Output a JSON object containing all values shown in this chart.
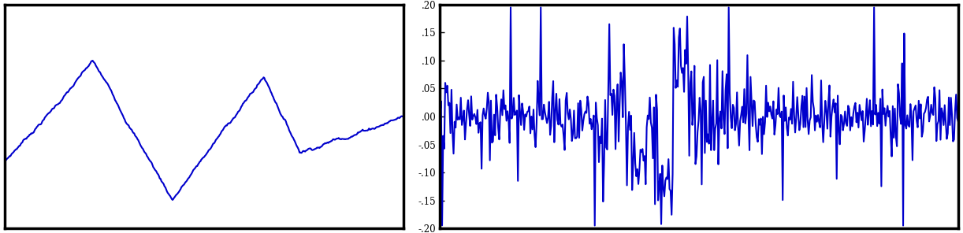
{
  "n": 500,
  "seed": 7,
  "line_color": "#0000CC",
  "line_width": 1.5,
  "background_color": "#ffffff",
  "right_ylim": [
    -0.2,
    0.2
  ],
  "right_yticks": [
    0.2,
    0.15,
    0.1,
    0.05,
    0.0,
    -0.05,
    -0.1,
    -0.15,
    -0.2
  ],
  "right_yticklabels": [
    ".20",
    ".15",
    ".10",
    ".05",
    ".00",
    "-.05",
    "-.10",
    "-.15",
    "-.20"
  ],
  "figsize": [
    12.22,
    2.96
  ],
  "dpi": 100
}
